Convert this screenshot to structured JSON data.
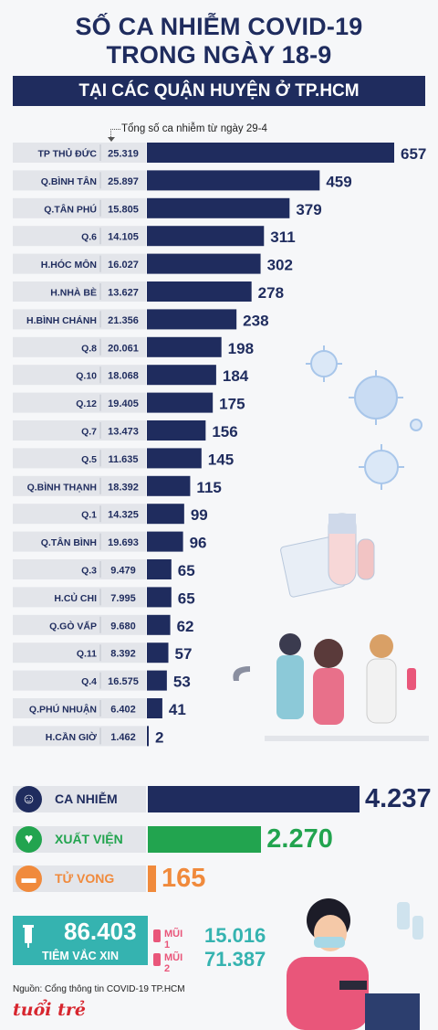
{
  "header": {
    "title_line1": "SỐ CA NHIỄM COVID-19",
    "title_line2": "TRONG NGÀY 18-9",
    "subtitle": "TẠI CÁC QUẬN HUYỆN Ở TP.HCM"
  },
  "cumulative_note": "Tổng số ca nhiễm từ ngày 29-4",
  "colors": {
    "navy": "#1f2c5e",
    "label_bg": "#e3e5ea",
    "green": "#22a44f",
    "orange": "#f08a3c",
    "teal": "#35b3b0",
    "pink": "#e9567a"
  },
  "chart_data": {
    "type": "bar",
    "orientation": "horizontal",
    "title": "SỐ CA NHIỄM COVID-19 TRONG NGÀY 18-9",
    "subtitle": "TẠI CÁC QUẬN HUYỆN Ở TP.HCM",
    "categories": [
      "TP THỦ ĐỨC",
      "Q.BÌNH TÂN",
      "Q.TÂN PHÚ",
      "Q.6",
      "H.HÓC MÔN",
      "H.NHÀ BÈ",
      "H.BÌNH CHÁNH",
      "Q.8",
      "Q.10",
      "Q.12",
      "Q.7",
      "Q.5",
      "Q.BÌNH THẠNH",
      "Q.1",
      "Q.TÂN BÌNH",
      "Q.3",
      "H.CỦ CHI",
      "Q.GÒ VẤP",
      "Q.11",
      "Q.4",
      "Q.PHÚ NHUẬN",
      "H.CẦN GIỜ"
    ],
    "series": [
      {
        "values": [
          657,
          459,
          379,
          311,
          302,
          278,
          238,
          198,
          184,
          175,
          156,
          145,
          115,
          99,
          96,
          65,
          65,
          62,
          57,
          53,
          41,
          2
        ]
      }
    ],
    "cumulative": [
      "25.319",
      "25.897",
      "15.805",
      "14.105",
      "16.027",
      "13.627",
      "21.356",
      "20.061",
      "18.068",
      "19.405",
      "13.473",
      "11.635",
      "18.392",
      "14.325",
      "19.693",
      "9.479",
      "7.995",
      "9.680",
      "8.392",
      "16.575",
      "6.402",
      "1.462"
    ],
    "xlim": [
      0,
      657
    ]
  },
  "summary": {
    "infected": {
      "label": "CA NHIỄM",
      "value": 4237,
      "display": "4.237",
      "icon": "head-icon"
    },
    "recovered": {
      "label": "XUẤT VIỆN",
      "value": 2270,
      "display": "2.270",
      "icon": "heart-icon"
    },
    "deaths": {
      "label": "TỬ VONG",
      "value": 165,
      "display": "165",
      "icon": "bed-icon"
    }
  },
  "vaccine": {
    "total": "86.403",
    "label": "TIÊM VẮC XIN",
    "dose1_label": "MŨI 1",
    "dose1_value": "15.016",
    "dose2_label": "MŨI 2",
    "dose2_value": "71.387"
  },
  "source": "Nguồn: Cổng thông tin COVID-19 TP.HCM",
  "logo_text": "tuổi trẻ"
}
